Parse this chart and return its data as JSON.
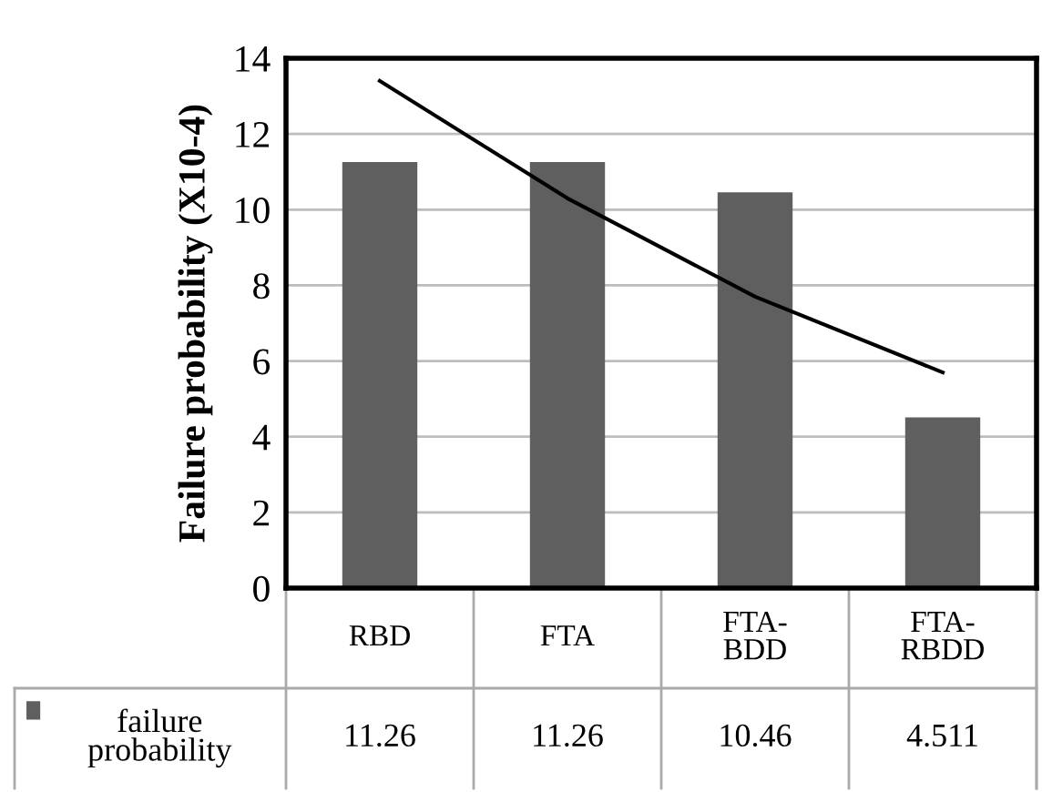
{
  "chart_data": {
    "type": "bar",
    "ylabel": "Failure probability (X10-4)",
    "categories": [
      "RBD",
      "FTA",
      "FTA-BDD",
      "FTA-RBDD"
    ],
    "series": [
      {
        "name": "failure probability",
        "color": "#5f5f5f",
        "values": [
          11.26,
          11.26,
          10.46,
          4.511
        ],
        "value_labels": [
          "11.26",
          "11.26",
          "10.46",
          "4.511"
        ]
      },
      {
        "type": "line",
        "color": "#000000",
        "values": [
          13.4,
          10.3,
          7.7,
          5.7
        ]
      }
    ],
    "ylim": [
      0,
      14
    ],
    "yticks": [
      0,
      2,
      4,
      6,
      8,
      10,
      12,
      14
    ],
    "grid": "y",
    "legend": "bottom left"
  }
}
